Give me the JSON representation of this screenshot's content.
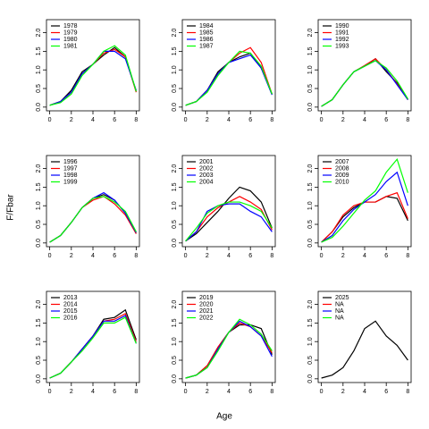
{
  "xlabel": "Age",
  "ylabel": "F/Fbar",
  "chart_data": [
    {
      "type": "line",
      "x": [
        0,
        1,
        2,
        3,
        4,
        5,
        6,
        7,
        8
      ],
      "xlim": [
        -0.3,
        8.3
      ],
      "ylim": [
        -0.1,
        2.35
      ],
      "xticks": [
        0,
        2,
        4,
        6,
        8
      ],
      "yticks": [
        {
          "value": 0,
          "label": "0.0"
        },
        {
          "value": 0.5,
          "label": "0.5"
        },
        {
          "value": 1,
          "label": "1.0"
        },
        {
          "value": 1.5,
          "label": "1.5"
        },
        {
          "value": 2,
          "label": "2.0"
        }
      ],
      "series": [
        {
          "name": "1978",
          "color": "#000000",
          "values": [
            0.05,
            0.15,
            0.45,
            0.95,
            1.15,
            1.4,
            1.6,
            1.35,
            0.42
          ]
        },
        {
          "name": "1979",
          "color": "#ff0000",
          "values": [
            0.05,
            0.15,
            0.4,
            0.9,
            1.15,
            1.45,
            1.55,
            1.35,
            0.4
          ]
        },
        {
          "name": "1980",
          "color": "#0000ff",
          "values": [
            0.05,
            0.15,
            0.4,
            0.9,
            1.15,
            1.5,
            1.5,
            1.3,
            0.45
          ]
        },
        {
          "name": "1981",
          "color": "#00ff00",
          "values": [
            0.05,
            0.12,
            0.35,
            0.85,
            1.15,
            1.5,
            1.65,
            1.4,
            0.42
          ]
        }
      ]
    },
    {
      "type": "line",
      "x": [
        0,
        1,
        2,
        3,
        4,
        5,
        6,
        7,
        8
      ],
      "xlim": [
        -0.3,
        8.3
      ],
      "ylim": [
        -0.1,
        2.35
      ],
      "xticks": [
        0,
        2,
        4,
        6,
        8
      ],
      "yticks": [
        {
          "value": 0,
          "label": "0.0"
        },
        {
          "value": 0.5,
          "label": "0.5"
        },
        {
          "value": 1,
          "label": "1.0"
        },
        {
          "value": 1.5,
          "label": "1.5"
        },
        {
          "value": 2,
          "label": "2.0"
        }
      ],
      "series": [
        {
          "name": "1984",
          "color": "#000000",
          "values": [
            0.05,
            0.15,
            0.45,
            0.95,
            1.2,
            1.35,
            1.45,
            1.05,
            0.35
          ]
        },
        {
          "name": "1985",
          "color": "#ff0000",
          "values": [
            0.05,
            0.15,
            0.45,
            0.9,
            1.2,
            1.45,
            1.6,
            1.2,
            0.35
          ]
        },
        {
          "name": "1986",
          "color": "#0000ff",
          "values": [
            0.05,
            0.15,
            0.45,
            0.9,
            1.2,
            1.3,
            1.4,
            1.05,
            0.33
          ]
        },
        {
          "name": "1987",
          "color": "#00ff00",
          "values": [
            0.05,
            0.15,
            0.4,
            0.85,
            1.2,
            1.5,
            1.45,
            1.1,
            0.35
          ]
        }
      ]
    },
    {
      "type": "line",
      "x": [
        0,
        1,
        2,
        3,
        4,
        5,
        6,
        7,
        8
      ],
      "xlim": [
        -0.3,
        8.3
      ],
      "ylim": [
        -0.1,
        2.35
      ],
      "xticks": [
        0,
        2,
        4,
        6,
        8
      ],
      "yticks": [
        {
          "value": 0,
          "label": "0.0"
        },
        {
          "value": 0.5,
          "label": "0.5"
        },
        {
          "value": 1,
          "label": "1.0"
        },
        {
          "value": 1.5,
          "label": "1.5"
        },
        {
          "value": 2,
          "label": "2.0"
        }
      ],
      "series": [
        {
          "name": "1990",
          "color": "#000000",
          "values": [
            0.02,
            0.2,
            0.6,
            0.95,
            1.1,
            1.3,
            0.95,
            0.65,
            0.2
          ]
        },
        {
          "name": "1991",
          "color": "#ff0000",
          "values": [
            0.02,
            0.2,
            0.6,
            0.95,
            1.12,
            1.3,
            1.0,
            0.62,
            0.2
          ]
        },
        {
          "name": "1992",
          "color": "#0000ff",
          "values": [
            0.02,
            0.2,
            0.6,
            0.95,
            1.1,
            1.25,
            1.0,
            0.6,
            0.2
          ]
        },
        {
          "name": "1993",
          "color": "#00ff00",
          "values": [
            0.02,
            0.2,
            0.6,
            0.95,
            1.1,
            1.25,
            1.05,
            0.7,
            0.22
          ]
        }
      ]
    },
    {
      "type": "line",
      "x": [
        0,
        1,
        2,
        3,
        4,
        5,
        6,
        7,
        8
      ],
      "xlim": [
        -0.3,
        8.3
      ],
      "ylim": [
        -0.1,
        2.35
      ],
      "xticks": [
        0,
        2,
        4,
        6,
        8
      ],
      "yticks": [
        {
          "value": 0,
          "label": "0.0"
        },
        {
          "value": 0.5,
          "label": "0.5"
        },
        {
          "value": 1,
          "label": "1.0"
        },
        {
          "value": 1.5,
          "label": "1.5"
        },
        {
          "value": 2,
          "label": "2.0"
        }
      ],
      "series": [
        {
          "name": "1996",
          "color": "#000000",
          "values": [
            0.02,
            0.2,
            0.55,
            0.95,
            1.2,
            1.3,
            1.15,
            0.8,
            0.25
          ]
        },
        {
          "name": "1997",
          "color": "#ff0000",
          "values": [
            0.02,
            0.2,
            0.55,
            0.95,
            1.15,
            1.25,
            1.05,
            0.75,
            0.25
          ]
        },
        {
          "name": "1998",
          "color": "#0000ff",
          "values": [
            0.02,
            0.2,
            0.55,
            0.95,
            1.2,
            1.35,
            1.15,
            0.8,
            0.28
          ]
        },
        {
          "name": "1999",
          "color": "#00ff00",
          "values": [
            0.02,
            0.2,
            0.55,
            0.95,
            1.2,
            1.25,
            1.1,
            0.85,
            0.3
          ]
        }
      ]
    },
    {
      "type": "line",
      "x": [
        0,
        1,
        2,
        3,
        4,
        5,
        6,
        7,
        8
      ],
      "xlim": [
        -0.3,
        8.3
      ],
      "ylim": [
        -0.1,
        2.35
      ],
      "xticks": [
        0,
        2,
        4,
        6,
        8
      ],
      "yticks": [
        {
          "value": 0,
          "label": "0.0"
        },
        {
          "value": 0.5,
          "label": "0.5"
        },
        {
          "value": 1,
          "label": "1.0"
        },
        {
          "value": 1.5,
          "label": "1.5"
        },
        {
          "value": 2,
          "label": "2.0"
        }
      ],
      "series": [
        {
          "name": "2001",
          "color": "#000000",
          "values": [
            0.05,
            0.25,
            0.55,
            0.85,
            1.2,
            1.5,
            1.4,
            1.1,
            0.4
          ]
        },
        {
          "name": "2002",
          "color": "#ff0000",
          "values": [
            0.05,
            0.3,
            0.7,
            0.95,
            1.1,
            1.25,
            1.1,
            0.9,
            0.35
          ]
        },
        {
          "name": "2003",
          "color": "#0000ff",
          "values": [
            0.05,
            0.3,
            0.85,
            1.0,
            1.05,
            1.05,
            0.85,
            0.7,
            0.3
          ]
        },
        {
          "name": "2004",
          "color": "#00ff00",
          "values": [
            0.05,
            0.4,
            0.8,
            1.0,
            1.1,
            1.1,
            1.0,
            0.85,
            0.4
          ]
        }
      ]
    },
    {
      "type": "line",
      "x": [
        0,
        1,
        2,
        3,
        4,
        5,
        6,
        7,
        8
      ],
      "xlim": [
        -0.3,
        8.3
      ],
      "ylim": [
        -0.1,
        2.35
      ],
      "xticks": [
        0,
        2,
        4,
        6,
        8
      ],
      "yticks": [
        {
          "value": 0,
          "label": "0.0"
        },
        {
          "value": 0.5,
          "label": "0.5"
        },
        {
          "value": 1,
          "label": "1.0"
        },
        {
          "value": 1.5,
          "label": "1.5"
        },
        {
          "value": 2,
          "label": "2.0"
        }
      ],
      "series": [
        {
          "name": "2007",
          "color": "#000000",
          "values": [
            0.02,
            0.3,
            0.7,
            0.95,
            1.1,
            1.1,
            1.25,
            1.2,
            0.6
          ]
        },
        {
          "name": "2008",
          "color": "#ff0000",
          "values": [
            0.02,
            0.3,
            0.75,
            1.0,
            1.1,
            1.1,
            1.25,
            1.35,
            0.65
          ]
        },
        {
          "name": "2009",
          "color": "#0000ff",
          "values": [
            0.02,
            0.2,
            0.6,
            0.9,
            1.1,
            1.3,
            1.65,
            1.9,
            1.0
          ]
        },
        {
          "name": "2010",
          "color": "#00ff00",
          "values": [
            0.02,
            0.15,
            0.45,
            0.8,
            1.15,
            1.4,
            1.9,
            2.25,
            1.35
          ]
        }
      ]
    },
    {
      "type": "line",
      "x": [
        0,
        1,
        2,
        3,
        4,
        5,
        6,
        7,
        8
      ],
      "xlim": [
        -0.3,
        8.3
      ],
      "ylim": [
        -0.1,
        2.35
      ],
      "xticks": [
        0,
        2,
        4,
        6,
        8
      ],
      "yticks": [
        {
          "value": 0,
          "label": "0.0"
        },
        {
          "value": 0.5,
          "label": "0.5"
        },
        {
          "value": 1,
          "label": "1.0"
        },
        {
          "value": 1.5,
          "label": "1.5"
        },
        {
          "value": 2,
          "label": "2.0"
        }
      ],
      "series": [
        {
          "name": "2013",
          "color": "#000000",
          "values": [
            0.02,
            0.15,
            0.45,
            0.8,
            1.15,
            1.6,
            1.65,
            1.85,
            1.05
          ]
        },
        {
          "name": "2014",
          "color": "#ff0000",
          "values": [
            0.02,
            0.15,
            0.45,
            0.8,
            1.15,
            1.55,
            1.6,
            1.75,
            1.0
          ]
        },
        {
          "name": "2015",
          "color": "#0000ff",
          "values": [
            0.02,
            0.15,
            0.45,
            0.8,
            1.15,
            1.55,
            1.55,
            1.7,
            0.95
          ]
        },
        {
          "name": "2016",
          "color": "#00ff00",
          "values": [
            0.02,
            0.15,
            0.45,
            0.75,
            1.1,
            1.5,
            1.5,
            1.65,
            0.95
          ]
        }
      ]
    },
    {
      "type": "line",
      "x": [
        0,
        1,
        2,
        3,
        4,
        5,
        6,
        7,
        8
      ],
      "xlim": [
        -0.3,
        8.3
      ],
      "ylim": [
        -0.1,
        2.35
      ],
      "xticks": [
        0,
        2,
        4,
        6,
        8
      ],
      "yticks": [
        {
          "value": 0,
          "label": "0.0"
        },
        {
          "value": 0.5,
          "label": "0.5"
        },
        {
          "value": 1,
          "label": "1.0"
        },
        {
          "value": 1.5,
          "label": "1.5"
        },
        {
          "value": 2,
          "label": "2.0"
        }
      ],
      "series": [
        {
          "name": "2019",
          "color": "#000000",
          "values": [
            0.02,
            0.1,
            0.35,
            0.85,
            1.25,
            1.45,
            1.45,
            1.35,
            0.65
          ]
        },
        {
          "name": "2020",
          "color": "#ff0000",
          "values": [
            0.02,
            0.1,
            0.35,
            0.85,
            1.25,
            1.5,
            1.4,
            1.15,
            0.7
          ]
        },
        {
          "name": "2021",
          "color": "#0000ff",
          "values": [
            0.02,
            0.1,
            0.3,
            0.8,
            1.25,
            1.55,
            1.4,
            1.15,
            0.6
          ]
        },
        {
          "name": "2022",
          "color": "#00ff00",
          "values": [
            0.02,
            0.1,
            0.3,
            0.75,
            1.25,
            1.6,
            1.45,
            1.2,
            0.75
          ]
        }
      ]
    },
    {
      "type": "line",
      "x": [
        0,
        1,
        2,
        3,
        4,
        5,
        6,
        7,
        8
      ],
      "xlim": [
        -0.3,
        8.3
      ],
      "ylim": [
        -0.1,
        2.35
      ],
      "xticks": [
        0,
        2,
        4,
        6,
        8
      ],
      "yticks": [
        {
          "value": 0,
          "label": "0.0"
        },
        {
          "value": 0.5,
          "label": "0.5"
        },
        {
          "value": 1,
          "label": "1.0"
        },
        {
          "value": 1.5,
          "label": "1.5"
        },
        {
          "value": 2,
          "label": "2.0"
        }
      ],
      "series": [
        {
          "name": "2025",
          "color": "#000000",
          "values": [
            0.02,
            0.1,
            0.3,
            0.75,
            1.35,
            1.55,
            1.15,
            0.9,
            0.5
          ]
        },
        {
          "name": "NA",
          "color": "#ff0000",
          "values": [
            null,
            null,
            null,
            null,
            null,
            null,
            null,
            null,
            null
          ]
        },
        {
          "name": "NA",
          "color": "#0000ff",
          "values": [
            null,
            null,
            null,
            null,
            null,
            null,
            null,
            null,
            null
          ]
        },
        {
          "name": "NA",
          "color": "#00ff00",
          "values": [
            null,
            null,
            null,
            null,
            null,
            null,
            null,
            null,
            null
          ]
        }
      ]
    }
  ]
}
